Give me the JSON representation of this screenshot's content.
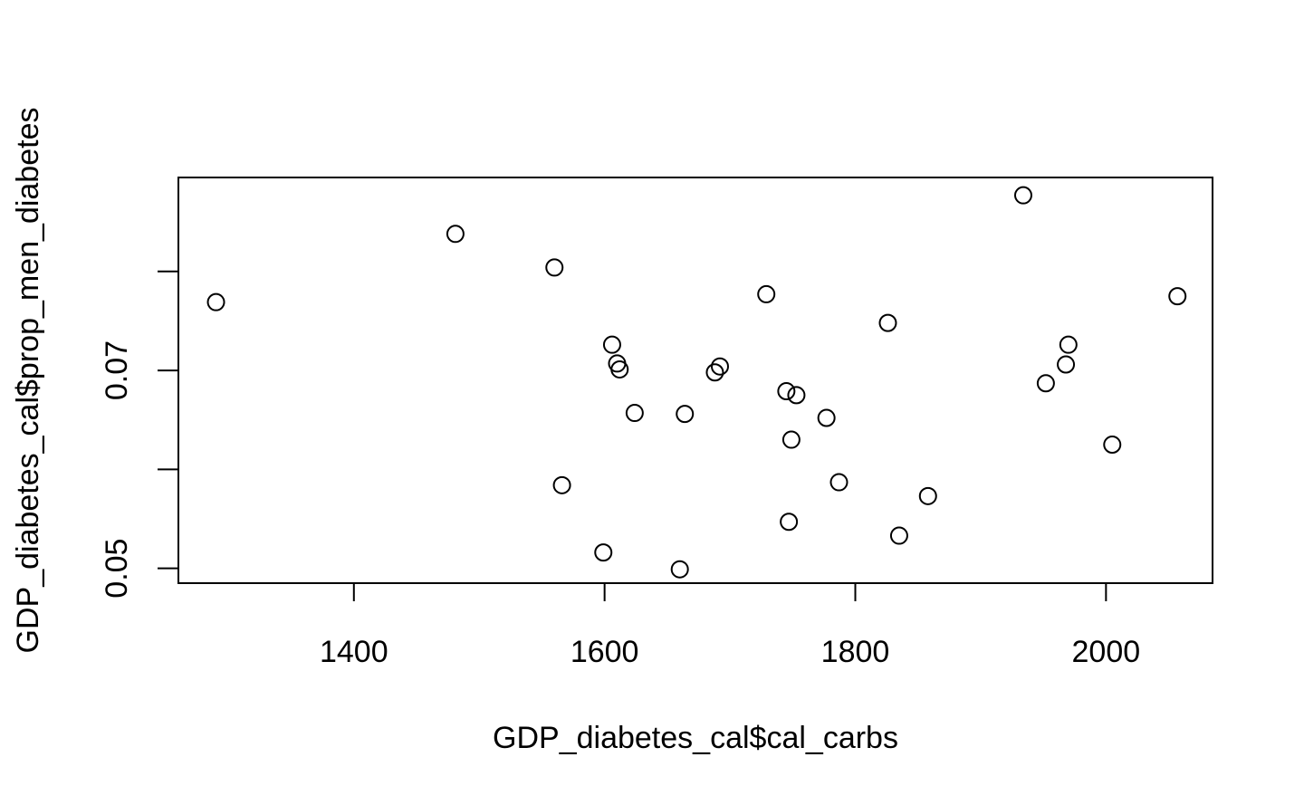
{
  "chart_data": {
    "type": "scatter",
    "title": "",
    "xlabel": "GDP_diabetes_cal$cal_carbs",
    "ylabel": "GDP_diabetes_cal$prop_men_diabetes",
    "xlim": [
      1260,
      2085
    ],
    "ylim": [
      0.0485,
      0.0895
    ],
    "x_ticks": [
      1400,
      1600,
      1800,
      2000
    ],
    "x_tick_labels": [
      "1400",
      "1600",
      "1800",
      "2000"
    ],
    "y_ticks": [
      0.05,
      0.06,
      0.07,
      0.08
    ],
    "y_tick_labels": [
      "0.05",
      "",
      "0.07",
      ""
    ],
    "marker": "open-circle",
    "grid": false,
    "points": [
      {
        "x": 1290,
        "y": 0.0769
      },
      {
        "x": 1481,
        "y": 0.0838
      },
      {
        "x": 1560,
        "y": 0.0804
      },
      {
        "x": 1566,
        "y": 0.0584
      },
      {
        "x": 1599,
        "y": 0.0516
      },
      {
        "x": 1606,
        "y": 0.0726
      },
      {
        "x": 1610,
        "y": 0.0707
      },
      {
        "x": 1612,
        "y": 0.0701
      },
      {
        "x": 1624,
        "y": 0.0657
      },
      {
        "x": 1660,
        "y": 0.0499
      },
      {
        "x": 1664,
        "y": 0.0656
      },
      {
        "x": 1688,
        "y": 0.0698
      },
      {
        "x": 1692,
        "y": 0.0704
      },
      {
        "x": 1729,
        "y": 0.0777
      },
      {
        "x": 1745,
        "y": 0.0679
      },
      {
        "x": 1747,
        "y": 0.0547
      },
      {
        "x": 1749,
        "y": 0.063
      },
      {
        "x": 1753,
        "y": 0.0675
      },
      {
        "x": 1777,
        "y": 0.0652
      },
      {
        "x": 1787,
        "y": 0.0587
      },
      {
        "x": 1826,
        "y": 0.0748
      },
      {
        "x": 1835,
        "y": 0.0533
      },
      {
        "x": 1858,
        "y": 0.0573
      },
      {
        "x": 1934,
        "y": 0.0877
      },
      {
        "x": 1952,
        "y": 0.0687
      },
      {
        "x": 1968,
        "y": 0.0706
      },
      {
        "x": 1970,
        "y": 0.0726
      },
      {
        "x": 2005,
        "y": 0.0625
      },
      {
        "x": 2057,
        "y": 0.0775
      }
    ]
  }
}
